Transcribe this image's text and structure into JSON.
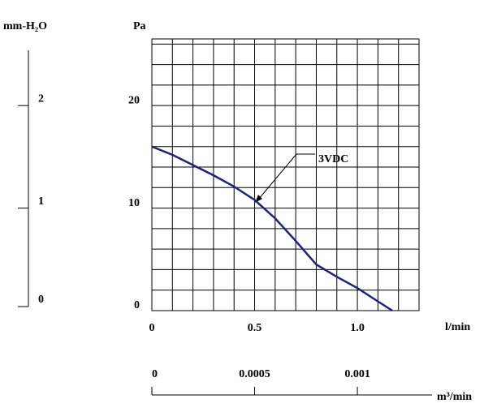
{
  "chart_data": {
    "type": "line",
    "y_label": "Pa",
    "x_label": "l/min",
    "y2_label": "mm-H₂O",
    "x2_label": "m³/min",
    "x": [
      0,
      0.1,
      0.2,
      0.3,
      0.4,
      0.5,
      0.6,
      0.7,
      0.8,
      0.9,
      1.0,
      1.1,
      1.17
    ],
    "series": [
      {
        "name": "3VDC",
        "color": "#1a237e",
        "values": [
          16,
          15.2,
          14.2,
          13.2,
          12.1,
          10.8,
          9,
          6.8,
          4.5,
          3.3,
          2.2,
          0.9,
          0
        ]
      }
    ],
    "xlim": [
      0,
      1.3
    ],
    "ylim": [
      0,
      26.5
    ],
    "xticks": [
      0,
      0.5,
      {
        "value": 1,
        "label": "1.0"
      }
    ],
    "yticks": [
      0,
      10,
      20
    ],
    "x_grid": [
      0,
      0.1,
      0.2,
      0.3,
      0.4,
      0.5,
      0.6,
      0.7,
      0.8,
      0.9,
      1.0,
      1.1,
      1.2,
      1.3
    ],
    "y_grid": [
      0,
      2,
      4,
      6,
      8,
      10,
      12,
      14,
      16,
      18,
      20,
      22,
      24,
      26
    ],
    "y2lim": [
      0,
      2.65
    ],
    "y2ticks": [
      0,
      1,
      2
    ],
    "x2lim": [
      0,
      0.0013
    ],
    "x2ticks": [
      0,
      0.0005,
      0.001
    ],
    "grid": true
  }
}
